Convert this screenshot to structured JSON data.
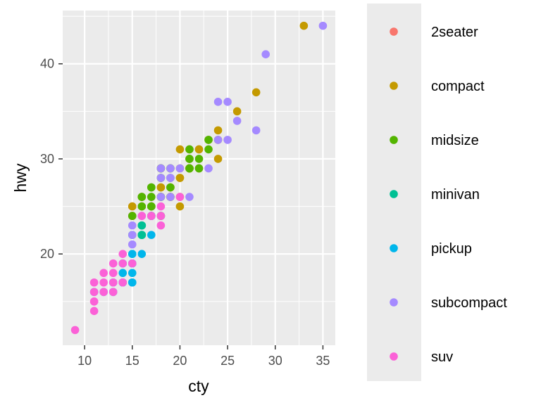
{
  "chart_data": {
    "type": "scatter",
    "title": "",
    "xlabel": "cty",
    "ylabel": "hwy",
    "xlim": [
      7.7,
      36.3
    ],
    "ylim": [
      10.4,
      45.6
    ],
    "xticks": [
      10,
      15,
      20,
      25,
      30,
      35
    ],
    "yticks": [
      20,
      30,
      40
    ],
    "grid": true,
    "legend_position": "right",
    "series": [
      {
        "name": "2seater",
        "color": "#F8766D",
        "points": [
          [
            15,
            25
          ],
          [
            15,
            24
          ],
          [
            16,
            26
          ],
          [
            15,
            24
          ],
          [
            15,
            24
          ]
        ]
      },
      {
        "name": "compact",
        "color": "#C49A00",
        "points": [
          [
            18,
            29
          ],
          [
            21,
            29
          ],
          [
            20,
            31
          ],
          [
            21,
            30
          ],
          [
            16,
            26
          ],
          [
            18,
            26
          ],
          [
            18,
            27
          ],
          [
            18,
            26
          ],
          [
            16,
            25
          ],
          [
            20,
            28
          ],
          [
            19,
            27
          ],
          [
            15,
            25
          ],
          [
            17,
            25
          ],
          [
            17,
            24
          ],
          [
            21,
            29
          ],
          [
            22,
            31
          ],
          [
            18,
            26
          ],
          [
            19,
            26
          ],
          [
            19,
            27
          ],
          [
            19,
            26
          ],
          [
            21,
            29
          ],
          [
            21,
            31
          ],
          [
            18,
            27
          ],
          [
            22,
            31
          ],
          [
            22,
            29
          ],
          [
            24,
            33
          ],
          [
            24,
            32
          ],
          [
            28,
            37
          ],
          [
            33,
            44
          ],
          [
            21,
            29
          ],
          [
            21,
            29
          ],
          [
            20,
            28
          ],
          [
            20,
            29
          ],
          [
            23,
            32
          ],
          [
            20,
            25
          ],
          [
            26,
            35
          ],
          [
            24,
            30
          ],
          [
            18,
            24
          ],
          [
            19,
            26
          ],
          [
            20,
            26
          ],
          [
            17,
            25
          ],
          [
            21,
            29
          ]
        ]
      },
      {
        "name": "midsize",
        "color": "#53B400",
        "points": [
          [
            17,
            25
          ],
          [
            18,
            26
          ],
          [
            19,
            27
          ],
          [
            17,
            27
          ],
          [
            16,
            26
          ],
          [
            17,
            25
          ],
          [
            16,
            25
          ],
          [
            16,
            26
          ],
          [
            15,
            24
          ],
          [
            18,
            29
          ],
          [
            18,
            28
          ],
          [
            17,
            27
          ],
          [
            21,
            30
          ],
          [
            19,
            26
          ],
          [
            21,
            29
          ],
          [
            22,
            30
          ],
          [
            18,
            28
          ],
          [
            19,
            29
          ],
          [
            19,
            28
          ],
          [
            17,
            26
          ],
          [
            23,
            32
          ],
          [
            23,
            31
          ],
          [
            21,
            30
          ],
          [
            21,
            29
          ],
          [
            22,
            29
          ],
          [
            18,
            26
          ],
          [
            18,
            29
          ],
          [
            19,
            29
          ],
          [
            21,
            31
          ],
          [
            17,
            26
          ],
          [
            18,
            26
          ]
        ]
      },
      {
        "name": "minivan",
        "color": "#00C094",
        "points": [
          [
            16,
            22
          ],
          [
            16,
            22
          ],
          [
            16,
            22
          ],
          [
            16,
            22
          ],
          [
            18,
            24
          ],
          [
            17,
            24
          ],
          [
            15,
            22
          ],
          [
            17,
            24
          ],
          [
            16,
            23
          ],
          [
            17,
            24
          ],
          [
            16,
            23
          ]
        ]
      },
      {
        "name": "pickup",
        "color": "#00B6EB",
        "points": [
          [
            15,
            20
          ],
          [
            14,
            17
          ],
          [
            13,
            17
          ],
          [
            11,
            16
          ],
          [
            15,
            17
          ],
          [
            12,
            16
          ],
          [
            14,
            18
          ],
          [
            14,
            17
          ],
          [
            14,
            19
          ],
          [
            13,
            16
          ],
          [
            15,
            19
          ],
          [
            16,
            20
          ],
          [
            15,
            17
          ],
          [
            15,
            18
          ],
          [
            17,
            22
          ],
          [
            15,
            20
          ],
          [
            15,
            19
          ]
        ]
      },
      {
        "name": "subcompact",
        "color": "#A58AFF",
        "points": [
          [
            18,
            26
          ],
          [
            19,
            29
          ],
          [
            20,
            29
          ],
          [
            18,
            28
          ],
          [
            19,
            28
          ],
          [
            15,
            21
          ],
          [
            15,
            22
          ],
          [
            15,
            23
          ],
          [
            17,
            24
          ],
          [
            16,
            24
          ],
          [
            19,
            28
          ],
          [
            18,
            29
          ],
          [
            19,
            26
          ],
          [
            21,
            26
          ],
          [
            24,
            36
          ],
          [
            25,
            36
          ],
          [
            28,
            33
          ],
          [
            29,
            41
          ],
          [
            35,
            44
          ],
          [
            24,
            32
          ],
          [
            25,
            32
          ],
          [
            26,
            34
          ],
          [
            23,
            29
          ]
        ]
      },
      {
        "name": "suv",
        "color": "#FB61D7",
        "points": [
          [
            9,
            12
          ],
          [
            11,
            15
          ],
          [
            11,
            14
          ],
          [
            11,
            16
          ],
          [
            11,
            17
          ],
          [
            12,
            17
          ],
          [
            12,
            18
          ],
          [
            13,
            19
          ],
          [
            13,
            17
          ],
          [
            13,
            18
          ],
          [
            14,
            20
          ],
          [
            14,
            17
          ],
          [
            14,
            19
          ],
          [
            11,
            15
          ],
          [
            12,
            16
          ],
          [
            13,
            16
          ],
          [
            15,
            19
          ],
          [
            17,
            24
          ],
          [
            18,
            23
          ],
          [
            18,
            25
          ],
          [
            16,
            24
          ],
          [
            20,
            26
          ],
          [
            18,
            24
          ]
        ]
      }
    ]
  }
}
